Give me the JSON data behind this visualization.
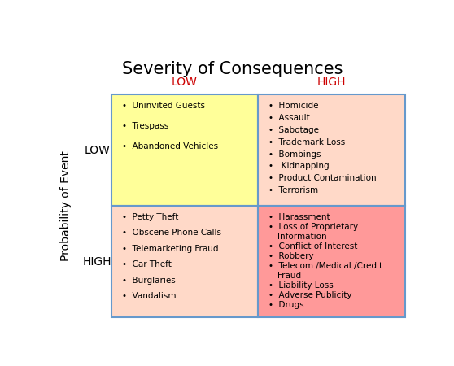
{
  "title": "Severity of Consequences",
  "title_fontsize": 15,
  "x_labels": [
    "LOW",
    "HIGH"
  ],
  "y_label": "Probability of Event",
  "y_row_labels": [
    "LOW",
    "HIGH"
  ],
  "quadrants": [
    {
      "row": 0,
      "col": 0,
      "bg_color": "#FFFF99",
      "border_color": "#6699CC",
      "items": [
        "Uninvited Guests",
        "Trespass",
        "Abandoned Vehicles"
      ]
    },
    {
      "row": 0,
      "col": 1,
      "bg_color": "#FFD9C8",
      "border_color": "#6699CC",
      "items": [
        "Homicide",
        "Assault",
        "Sabotage",
        "Trademark Loss",
        "Bombings",
        " Kidnapping",
        "Product Contamination",
        "Terrorism"
      ]
    },
    {
      "row": 1,
      "col": 0,
      "bg_color": "#FFD9C8",
      "border_color": "#6699CC",
      "items": [
        "Petty Theft",
        "Obscene Phone Calls",
        "Telemarketing Fraud",
        "Car Theft",
        "Burglaries",
        "Vandalism"
      ]
    },
    {
      "row": 1,
      "col": 1,
      "bg_color": "#FF9999",
      "border_color": "#6699CC",
      "items": [
        "Harassment",
        "Loss of Proprietary\nInformation",
        "Conflict of Interest",
        "Robbery",
        "Telecom /Medical /Credit\nFraud",
        "Liability Loss",
        "Adverse Publicity",
        "Drugs"
      ]
    }
  ],
  "severity_color": "#CC0000",
  "bullet": "•"
}
